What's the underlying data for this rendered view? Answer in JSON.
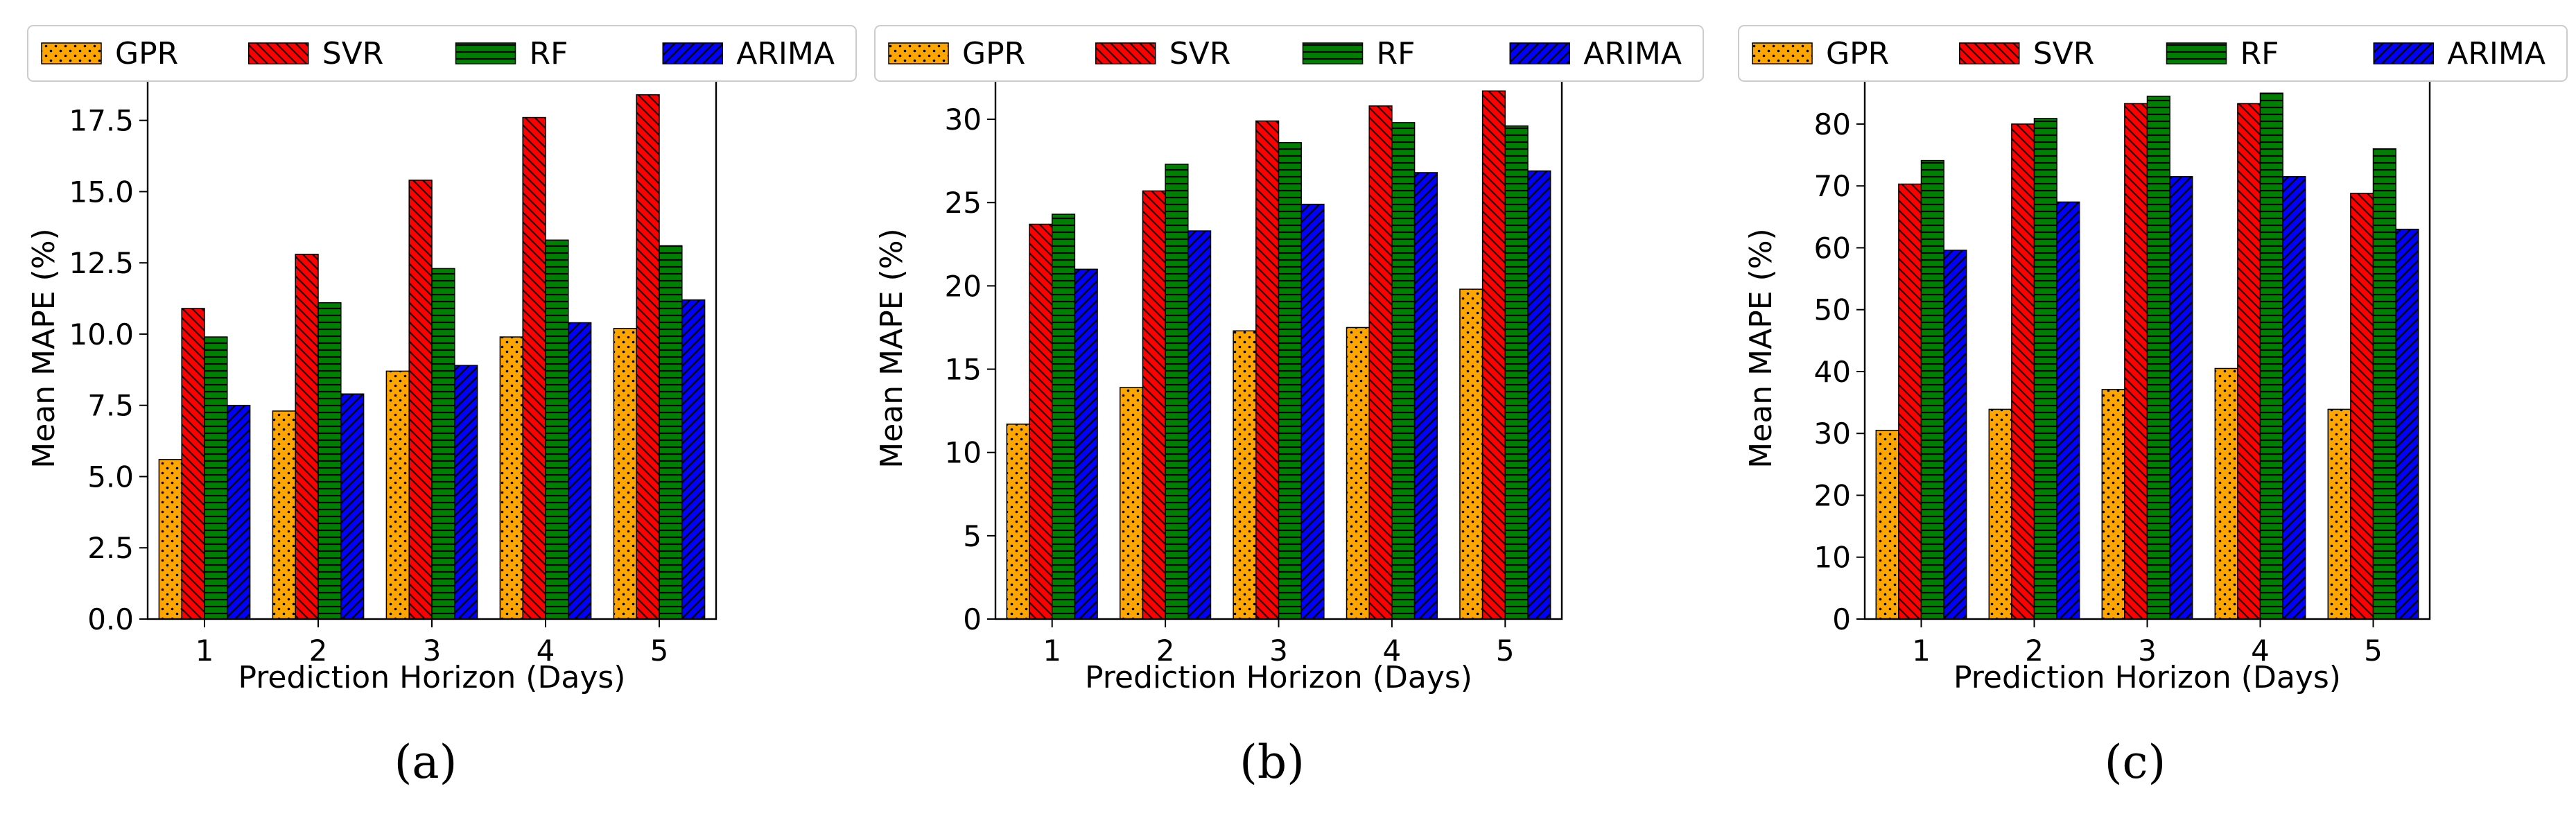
{
  "figure": {
    "legend_position": "top"
  },
  "colors": {
    "GPR": "#ffa500",
    "SVR": "#ff0000",
    "RF": "#008000",
    "ARIMA": "#0000ff"
  },
  "chart_data": [
    {
      "type": "bar",
      "panel": "a",
      "caption": "(a)",
      "xlabel": "Prediction Horizon (Days)",
      "ylabel": "Mean MAPE (%)",
      "categories": [
        "1",
        "2",
        "3",
        "4",
        "5"
      ],
      "ylim": [
        0,
        19.0
      ],
      "yticks": [
        0,
        2.5,
        5,
        7.5,
        10,
        12.5,
        15,
        17.5
      ],
      "ytick_labels": [
        "0.0",
        "2.5",
        "5.0",
        "7.5",
        "10.0",
        "12.5",
        "15.0",
        "17.5"
      ],
      "legend": [
        "GPR",
        "SVR",
        "RF",
        "ARIMA"
      ],
      "series": [
        {
          "name": "GPR",
          "values": [
            5.6,
            7.3,
            8.7,
            9.9,
            10.2
          ]
        },
        {
          "name": "SVR",
          "values": [
            10.9,
            12.8,
            15.4,
            17.6,
            18.4
          ]
        },
        {
          "name": "RF",
          "values": [
            9.9,
            11.1,
            12.3,
            13.3,
            13.1
          ]
        },
        {
          "name": "ARIMA",
          "values": [
            7.5,
            7.9,
            8.9,
            10.4,
            11.2
          ]
        }
      ]
    },
    {
      "type": "bar",
      "panel": "b",
      "caption": "(b)",
      "xlabel": "Prediction Horizon (Days)",
      "ylabel": "Mean MAPE (%)",
      "categories": [
        "1",
        "2",
        "3",
        "4",
        "5"
      ],
      "ylim": [
        0,
        32.5
      ],
      "yticks": [
        0,
        5,
        10,
        15,
        20,
        25,
        30
      ],
      "ytick_labels": [
        "0",
        "5",
        "10",
        "15",
        "20",
        "25",
        "30"
      ],
      "legend": [
        "GPR",
        "SVR",
        "RF",
        "ARIMA"
      ],
      "series": [
        {
          "name": "GPR",
          "values": [
            11.7,
            13.9,
            17.3,
            17.5,
            19.8
          ]
        },
        {
          "name": "SVR",
          "values": [
            23.7,
            25.7,
            29.9,
            30.8,
            31.7
          ]
        },
        {
          "name": "RF",
          "values": [
            24.3,
            27.3,
            28.6,
            29.8,
            29.6
          ]
        },
        {
          "name": "ARIMA",
          "values": [
            21.0,
            23.3,
            24.9,
            26.8,
            26.9
          ]
        }
      ]
    },
    {
      "type": "bar",
      "panel": "c",
      "caption": "(c)",
      "xlabel": "Prediction Horizon (Days)",
      "ylabel": "Mean MAPE (%)",
      "categories": [
        "1",
        "2",
        "3",
        "4",
        "5"
      ],
      "ylim": [
        0,
        87.5
      ],
      "yticks": [
        0,
        10,
        20,
        30,
        40,
        50,
        60,
        70,
        80
      ],
      "ytick_labels": [
        "0",
        "10",
        "20",
        "30",
        "40",
        "50",
        "60",
        "70",
        "80"
      ],
      "legend": [
        "GPR",
        "SVR",
        "RF",
        "ARIMA"
      ],
      "series": [
        {
          "name": "GPR",
          "values": [
            30.5,
            33.9,
            37.1,
            40.5,
            33.9
          ]
        },
        {
          "name": "SVR",
          "values": [
            70.3,
            80.0,
            83.3,
            83.3,
            68.8
          ]
        },
        {
          "name": "RF",
          "values": [
            74.1,
            80.9,
            84.5,
            85.0,
            76.0
          ]
        },
        {
          "name": "ARIMA",
          "values": [
            59.6,
            67.4,
            71.5,
            71.5,
            63.0
          ]
        }
      ]
    }
  ]
}
